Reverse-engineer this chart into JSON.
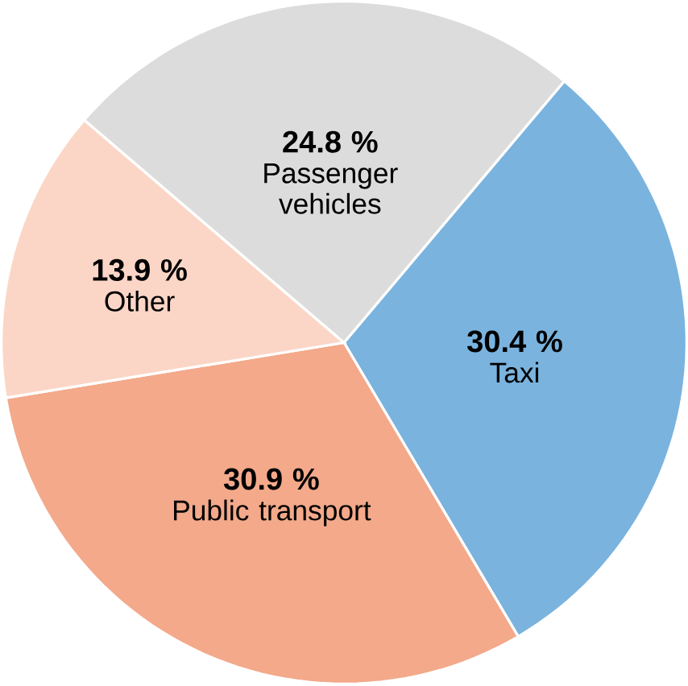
{
  "chart_data": {
    "type": "pie",
    "categories": [
      "Taxi",
      "Public transport",
      "Other",
      "Passenger vehicles"
    ],
    "values": [
      30.4,
      30.9,
      13.9,
      24.8
    ],
    "colors": [
      "#7ab3de",
      "#f3a98a",
      "#fbd6c6",
      "#dcdcdc"
    ],
    "value_labels": [
      "30.4 %",
      "30.9 %",
      "13.9 %",
      "24.8 %"
    ]
  }
}
